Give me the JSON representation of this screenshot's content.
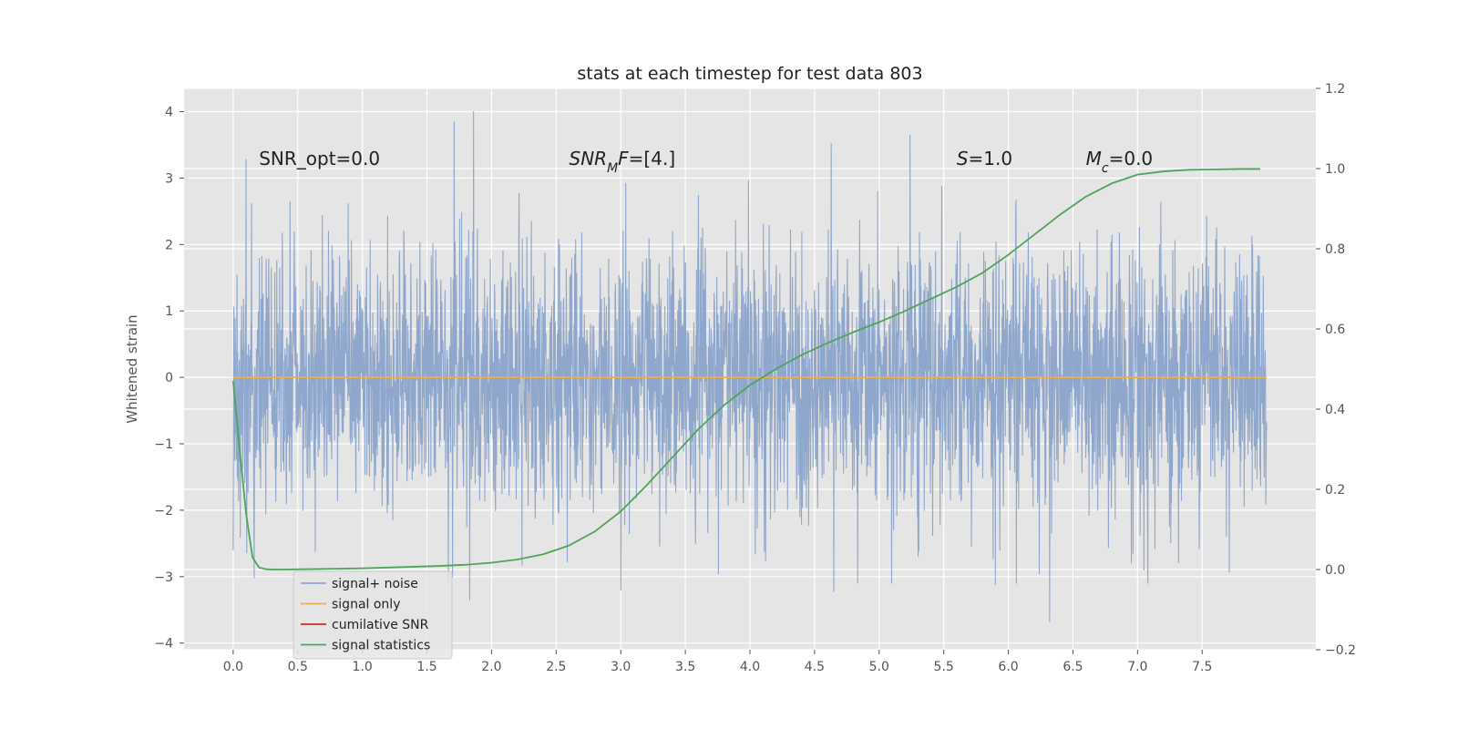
{
  "chart_data": {
    "type": "line",
    "title": "stats at each timestep for test data 803",
    "ylabel": "Whitened strain",
    "xlabel": "",
    "xlim": [
      -0.38,
      8.38
    ],
    "ylim": [
      -4.1,
      4.35
    ],
    "y2lim": [
      -0.2,
      1.2
    ],
    "xticks": [
      "0.0",
      "0.5",
      "1.0",
      "1.5",
      "2.0",
      "2.5",
      "3.0",
      "3.5",
      "4.0",
      "4.5",
      "5.0",
      "5.5",
      "6.0",
      "6.5",
      "7.0",
      "7.5"
    ],
    "yticks": [
      "4",
      "3",
      "2",
      "1",
      "0",
      "−1",
      "−2",
      "−3",
      "−4"
    ],
    "y2ticks": [
      "1.2",
      "1.0",
      "0.8",
      "0.6",
      "0.4",
      "0.2",
      "0.0",
      "−0.2"
    ],
    "grid": true,
    "legend_position": "lower-left",
    "annotations": [
      {
        "x": 0.2,
        "y": 3.2,
        "segments": [
          {
            "t": "SNR_opt=0.0"
          }
        ]
      },
      {
        "x": 2.6,
        "y": 3.2,
        "segments": [
          {
            "t": "SNR",
            "i": true
          },
          {
            "t": "M",
            "i": true,
            "sub": true
          },
          {
            "t": "F",
            "i": true
          },
          {
            "t": "=[4.]"
          }
        ]
      },
      {
        "x": 5.6,
        "y": 3.2,
        "segments": [
          {
            "t": "S",
            "i": true
          },
          {
            "t": "=1.0"
          }
        ]
      },
      {
        "x": 6.6,
        "y": 3.2,
        "segments": [
          {
            "t": "M",
            "i": true
          },
          {
            "t": "c",
            "i": true,
            "sub": true
          },
          {
            "t": "=0.0"
          }
        ]
      }
    ],
    "series": [
      {
        "name": "signal+ noise",
        "color": "#8fa7cc",
        "axis": "left",
        "x_range": [
          0.0,
          8.0
        ],
        "sample_count": 3200,
        "noise_std": 1.0,
        "peaks": [
          [
            0.1,
            3.28
          ],
          [
            1.71,
            3.85
          ],
          [
            1.86,
            4.0
          ],
          [
            4.63,
            3.52
          ],
          [
            5.24,
            3.65
          ],
          [
            1.83,
            -3.35
          ],
          [
            3.0,
            -3.2
          ],
          [
            4.65,
            -3.22
          ],
          [
            6.32,
            -3.68
          ],
          [
            5.9,
            -3.12
          ],
          [
            7.05,
            -2.9
          ],
          [
            0.0,
            -2.6
          ]
        ]
      },
      {
        "name": "signal only",
        "color": "#e8b04f",
        "axis": "left",
        "x": [
          0.0,
          8.0
        ],
        "y": [
          0.0,
          0.0
        ]
      },
      {
        "name": "cumilative SNR",
        "color": "#d62728",
        "axis": "left",
        "x": [],
        "y": []
      },
      {
        "name": "signal statistics",
        "color": "#4ea45a",
        "axis": "right",
        "x": [
          0.0,
          0.05,
          0.1,
          0.15,
          0.2,
          0.25,
          0.3,
          0.4,
          0.6,
          0.8,
          1.0,
          1.2,
          1.4,
          1.6,
          1.8,
          2.0,
          2.2,
          2.4,
          2.6,
          2.8,
          3.0,
          3.2,
          3.4,
          3.6,
          3.8,
          4.0,
          4.2,
          4.4,
          4.6,
          4.8,
          5.0,
          5.2,
          5.4,
          5.6,
          5.8,
          6.0,
          6.2,
          6.4,
          6.6,
          6.8,
          7.0,
          7.2,
          7.4,
          7.6,
          7.8,
          7.95
        ],
        "y": [
          0.47,
          0.3,
          0.14,
          0.03,
          0.005,
          0.001,
          0.0,
          0.0,
          0.001,
          0.002,
          0.003,
          0.005,
          0.007,
          0.009,
          0.012,
          0.017,
          0.025,
          0.038,
          0.06,
          0.095,
          0.145,
          0.21,
          0.28,
          0.35,
          0.41,
          0.46,
          0.5,
          0.535,
          0.565,
          0.592,
          0.617,
          0.645,
          0.675,
          0.705,
          0.74,
          0.785,
          0.835,
          0.885,
          0.93,
          0.963,
          0.985,
          0.993,
          0.997,
          0.998,
          0.999,
          0.999
        ]
      }
    ]
  }
}
